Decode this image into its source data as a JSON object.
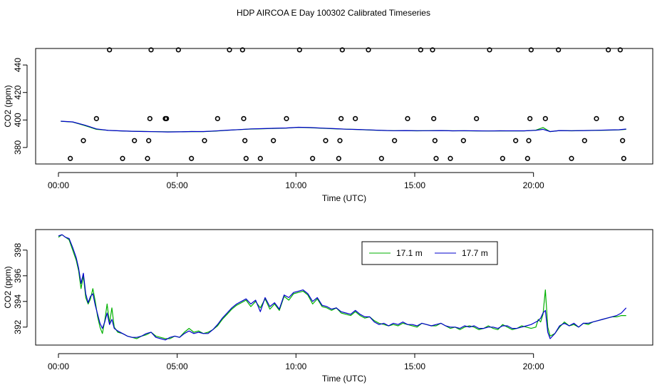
{
  "figure": {
    "title": "HDP AIRCOA E  Day 100302  Calibrated Timeseries"
  },
  "colors": {
    "series_171": "#00b000",
    "series_177": "#0000cc",
    "markers": "#000000"
  },
  "chart_data": [
    {
      "type": "line+scatter",
      "panel": "top",
      "xlabel": "Time (UTC)",
      "ylabel": "CO2 (ppm)",
      "xlim": [
        0,
        24
      ],
      "ylim": [
        368,
        452
      ],
      "x_tick_values": [
        0,
        5,
        10,
        15,
        20
      ],
      "x_tick_labels": [
        "00:00",
        "05:00",
        "10:00",
        "15:00",
        "20:00"
      ],
      "y_tick_values": [
        380,
        400,
        420,
        440
      ],
      "y_tick_labels": [
        "380",
        "400",
        "420",
        "440"
      ],
      "series": [
        {
          "color": "#00b000",
          "x": [
            0.1,
            0.6,
            1.1,
            1.6,
            2.1,
            2.6,
            3.1,
            3.6,
            4.1,
            4.6,
            5.1,
            5.6,
            6.1,
            6.6,
            7.1,
            7.6,
            8.1,
            8.6,
            9.1,
            9.6,
            10.1,
            10.6,
            11.1,
            11.6,
            12.1,
            12.6,
            13.1,
            13.6,
            14.1,
            14.6,
            15.1,
            15.6,
            16.1,
            16.6,
            17.1,
            17.6,
            18.1,
            18.6,
            19.1,
            19.6,
            20.1,
            20.4,
            20.7,
            21.1,
            21.6,
            22.1,
            22.6,
            23.1,
            23.6,
            23.9
          ],
          "y": [
            399,
            398.5,
            396,
            393.2,
            392.5,
            392,
            391.8,
            391.7,
            391.5,
            391.4,
            391.4,
            391.6,
            391.5,
            391.9,
            392.5,
            393,
            393.4,
            393.6,
            393.9,
            394.1,
            394.6,
            394.4,
            394.0,
            393.6,
            393.3,
            393.1,
            392.7,
            392.4,
            392.2,
            392.2,
            392.1,
            392.2,
            392.3,
            392.1,
            392.1,
            392.0,
            392.0,
            392.1,
            392.0,
            392.0,
            392.6,
            394.5,
            391.5,
            392.3,
            392.1,
            392.3,
            392.4,
            392.6,
            392.8,
            393.2
          ]
        },
        {
          "color": "#0000cc",
          "x": [
            0.1,
            0.6,
            1.1,
            1.6,
            2.1,
            2.6,
            3.1,
            3.6,
            4.1,
            4.6,
            5.1,
            5.6,
            6.1,
            6.6,
            7.1,
            7.6,
            8.1,
            8.6,
            9.1,
            9.6,
            10.1,
            10.6,
            11.1,
            11.6,
            12.1,
            12.6,
            13.1,
            13.6,
            14.1,
            14.6,
            15.1,
            15.6,
            16.1,
            16.6,
            17.1,
            17.6,
            18.1,
            18.6,
            19.1,
            19.6,
            20.1,
            20.4,
            20.7,
            21.1,
            21.6,
            22.1,
            22.6,
            23.1,
            23.6,
            23.9
          ],
          "y": [
            399.1,
            398.6,
            396.3,
            393.5,
            392.4,
            392.1,
            391.8,
            391.6,
            391.5,
            391.3,
            391.4,
            391.6,
            391.6,
            392.0,
            392.6,
            393.0,
            393.5,
            393.7,
            394.0,
            394.2,
            394.7,
            394.5,
            394.1,
            393.7,
            393.3,
            393.1,
            392.8,
            392.4,
            392.2,
            392.3,
            392.2,
            392.2,
            392.3,
            392.1,
            392.2,
            392.1,
            392.0,
            392.1,
            392.1,
            392.1,
            392.5,
            393.2,
            391.6,
            392.3,
            392.2,
            392.3,
            392.5,
            392.7,
            392.9,
            393.4
          ]
        },
        {
          "type": "scatter",
          "marker": "open-circle",
          "color": "#000000",
          "x": [
            0.5,
            1.05,
            1.6,
            2.15,
            2.7,
            3.2,
            3.75,
            3.8,
            3.85,
            3.9,
            4.5,
            4.55,
            5.05,
            5.6,
            6.15,
            6.7,
            7.2,
            7.75,
            7.8,
            7.85,
            7.9,
            8.5,
            9.05,
            9.6,
            10.15,
            10.7,
            11.25,
            11.8,
            11.85,
            11.9,
            11.95,
            12.5,
            13.05,
            13.6,
            14.15,
            14.7,
            15.25,
            15.75,
            15.8,
            15.85,
            15.9,
            16.5,
            17.05,
            17.6,
            18.15,
            18.7,
            19.25,
            19.75,
            19.8,
            19.85,
            19.9,
            20.5,
            21.05,
            21.6,
            22.15,
            22.65,
            23.15,
            23.65,
            23.7,
            23.75,
            23.8
          ],
          "y": [
            372,
            385,
            401,
            451,
            372,
            385,
            372,
            385,
            401,
            451,
            401,
            401,
            451,
            372,
            385,
            401,
            451,
            451,
            401,
            385,
            372,
            372,
            385,
            401,
            451,
            372,
            385,
            372,
            385,
            401,
            451,
            401,
            451,
            372,
            385,
            401,
            451,
            451,
            401,
            385,
            372,
            372,
            385,
            401,
            451,
            372,
            385,
            372,
            385,
            401,
            451,
            401,
            451,
            372,
            385,
            401,
            451,
            451,
            401,
            385,
            372
          ]
        }
      ]
    },
    {
      "type": "line",
      "panel": "bottom",
      "xlabel": "Time (UTC)",
      "ylabel": "CO2 (ppm)",
      "xlim": [
        0,
        24
      ],
      "ylim": [
        390.6,
        399.6
      ],
      "x_tick_values": [
        0,
        5,
        10,
        15,
        20
      ],
      "x_tick_labels": [
        "00:00",
        "05:00",
        "10:00",
        "15:00",
        "20:00"
      ],
      "y_tick_values": [
        392,
        394,
        396,
        398
      ],
      "y_tick_labels": [
        "392",
        "394",
        "396",
        "398"
      ],
      "legend": {
        "position": "top-center",
        "entries": [
          "17.1 m",
          "17.7 m"
        ]
      },
      "series": [
        {
          "name": "17.1 m",
          "color": "#00b000",
          "x": [
            0.0,
            0.15,
            0.3,
            0.45,
            0.6,
            0.75,
            0.85,
            0.95,
            1.05,
            1.15,
            1.25,
            1.35,
            1.45,
            1.55,
            1.65,
            1.75,
            1.85,
            1.95,
            2.05,
            2.15,
            2.25,
            2.35,
            2.5,
            2.7,
            2.9,
            3.1,
            3.3,
            3.5,
            3.7,
            3.9,
            4.1,
            4.3,
            4.5,
            4.7,
            4.9,
            5.1,
            5.3,
            5.5,
            5.7,
            5.9,
            6.1,
            6.3,
            6.5,
            6.7,
            6.9,
            7.1,
            7.3,
            7.5,
            7.7,
            7.9,
            8.1,
            8.3,
            8.5,
            8.7,
            8.9,
            9.1,
            9.3,
            9.5,
            9.7,
            9.9,
            10.1,
            10.3,
            10.5,
            10.7,
            10.9,
            11.1,
            11.3,
            11.5,
            11.7,
            11.9,
            12.1,
            12.3,
            12.5,
            12.7,
            12.9,
            13.1,
            13.3,
            13.5,
            13.7,
            13.9,
            14.1,
            14.3,
            14.5,
            14.7,
            14.9,
            15.1,
            15.3,
            15.5,
            15.7,
            15.9,
            16.1,
            16.3,
            16.5,
            16.7,
            16.9,
            17.1,
            17.3,
            17.5,
            17.7,
            17.9,
            18.1,
            18.3,
            18.5,
            18.7,
            18.9,
            19.1,
            19.3,
            19.5,
            19.7,
            19.9,
            20.1,
            20.2,
            20.3,
            20.4,
            20.5,
            20.6,
            20.7,
            20.9,
            21.1,
            21.3,
            21.5,
            21.7,
            21.9,
            22.1,
            22.3,
            22.5,
            22.7,
            22.9,
            23.1,
            23.3,
            23.5,
            23.7,
            23.9
          ],
          "y": [
            399.0,
            399.2,
            399.0,
            398.8,
            398.0,
            397.2,
            396.4,
            395.0,
            396.0,
            394.3,
            393.8,
            394.2,
            395.0,
            394.0,
            392.8,
            392.0,
            391.5,
            392.5,
            393.8,
            392.3,
            393.5,
            392.0,
            391.6,
            391.5,
            391.3,
            391.2,
            391.1,
            391.3,
            391.4,
            391.6,
            391.3,
            391.2,
            391.1,
            391.1,
            391.3,
            391.2,
            391.6,
            391.9,
            391.6,
            391.7,
            391.5,
            391.6,
            391.8,
            392.1,
            392.6,
            393.0,
            393.4,
            393.7,
            393.9,
            394.1,
            393.6,
            394.0,
            393.5,
            394.2,
            393.4,
            393.8,
            393.3,
            394.4,
            394.1,
            394.6,
            394.7,
            394.8,
            394.5,
            393.8,
            394.2,
            393.6,
            393.5,
            393.3,
            393.5,
            393.1,
            393.0,
            392.9,
            393.2,
            392.9,
            392.7,
            392.8,
            392.5,
            392.3,
            392.2,
            392.1,
            392.2,
            392.1,
            392.3,
            392.2,
            392.1,
            392.0,
            392.3,
            392.2,
            392.1,
            392.1,
            392.3,
            392.1,
            391.9,
            392.0,
            391.8,
            392.0,
            392.1,
            392.0,
            391.8,
            391.9,
            392.1,
            391.9,
            391.8,
            392.2,
            392.0,
            391.8,
            391.9,
            392.1,
            392.0,
            391.9,
            392.0,
            392.6,
            392.4,
            393.0,
            394.9,
            392.0,
            391.3,
            391.5,
            392.0,
            392.4,
            392.1,
            392.2,
            392.0,
            392.3,
            392.2,
            392.4,
            392.5,
            392.6,
            392.7,
            392.8,
            392.8,
            392.9,
            392.9
          ]
        },
        {
          "name": "17.7 m",
          "color": "#0000cc",
          "x": [
            0.0,
            0.15,
            0.3,
            0.45,
            0.6,
            0.75,
            0.85,
            0.95,
            1.05,
            1.15,
            1.25,
            1.35,
            1.45,
            1.55,
            1.65,
            1.75,
            1.85,
            1.95,
            2.05,
            2.15,
            2.25,
            2.35,
            2.5,
            2.7,
            2.9,
            3.1,
            3.3,
            3.5,
            3.7,
            3.9,
            4.1,
            4.3,
            4.5,
            4.7,
            4.9,
            5.1,
            5.3,
            5.5,
            5.7,
            5.9,
            6.1,
            6.3,
            6.5,
            6.7,
            6.9,
            7.1,
            7.3,
            7.5,
            7.7,
            7.9,
            8.1,
            8.3,
            8.5,
            8.7,
            8.9,
            9.1,
            9.3,
            9.5,
            9.7,
            9.9,
            10.1,
            10.3,
            10.5,
            10.7,
            10.9,
            11.1,
            11.3,
            11.5,
            11.7,
            11.9,
            12.1,
            12.3,
            12.5,
            12.7,
            12.9,
            13.1,
            13.3,
            13.5,
            13.7,
            13.9,
            14.1,
            14.3,
            14.5,
            14.7,
            14.9,
            15.1,
            15.3,
            15.5,
            15.7,
            15.9,
            16.1,
            16.3,
            16.5,
            16.7,
            16.9,
            17.1,
            17.3,
            17.5,
            17.7,
            17.9,
            18.1,
            18.3,
            18.5,
            18.7,
            18.9,
            19.1,
            19.3,
            19.5,
            19.7,
            19.9,
            20.1,
            20.2,
            20.3,
            20.4,
            20.5,
            20.6,
            20.7,
            20.9,
            21.1,
            21.3,
            21.5,
            21.7,
            21.9,
            22.1,
            22.3,
            22.5,
            22.7,
            22.9,
            23.1,
            23.3,
            23.5,
            23.7,
            23.9
          ],
          "y": [
            399.1,
            399.2,
            399.0,
            398.9,
            398.2,
            397.4,
            396.6,
            395.4,
            396.2,
            394.6,
            393.9,
            394.4,
            394.6,
            393.7,
            393.0,
            392.3,
            391.9,
            392.4,
            393.1,
            392.2,
            392.6,
            391.9,
            391.7,
            391.5,
            391.3,
            391.2,
            391.2,
            391.3,
            391.5,
            391.6,
            391.2,
            391.1,
            391.0,
            391.2,
            391.3,
            391.2,
            391.5,
            391.7,
            391.5,
            391.6,
            391.5,
            391.5,
            391.8,
            392.2,
            392.7,
            393.1,
            393.5,
            393.8,
            394.0,
            394.2,
            393.8,
            394.1,
            393.2,
            394.3,
            393.6,
            393.9,
            393.4,
            394.5,
            394.3,
            394.7,
            394.8,
            394.9,
            394.6,
            394.0,
            394.3,
            393.7,
            393.6,
            393.4,
            393.5,
            393.2,
            393.1,
            393.0,
            393.3,
            393.0,
            392.8,
            392.8,
            392.4,
            392.2,
            392.3,
            392.1,
            392.3,
            392.2,
            392.4,
            392.2,
            392.2,
            392.1,
            392.3,
            392.2,
            392.1,
            392.2,
            392.3,
            392.1,
            392.0,
            392.0,
            391.9,
            392.1,
            392.0,
            392.1,
            391.9,
            391.9,
            392.0,
            392.0,
            391.9,
            392.1,
            392.1,
            391.9,
            391.9,
            392.0,
            392.1,
            392.2,
            392.4,
            392.5,
            392.7,
            393.1,
            393.3,
            391.6,
            391.1,
            391.5,
            392.1,
            392.3,
            392.1,
            392.3,
            392.0,
            392.3,
            392.3,
            392.4,
            392.5,
            392.6,
            392.7,
            392.8,
            392.9,
            393.1,
            393.5
          ]
        }
      ]
    }
  ]
}
